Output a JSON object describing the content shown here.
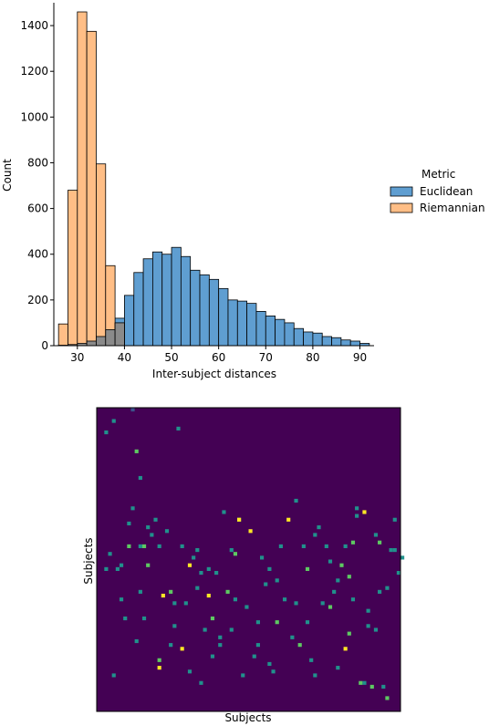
{
  "chart_data": [
    {
      "type": "histogram",
      "xlabel": "Inter-subject distances",
      "ylabel": "Count",
      "xlim": [
        25,
        93
      ],
      "ylim": [
        0,
        1500
      ],
      "xticks": [
        30,
        40,
        50,
        60,
        70,
        80,
        90
      ],
      "yticks": [
        0,
        200,
        400,
        600,
        800,
        1000,
        1200,
        1400
      ],
      "bin_width": 2,
      "legend": {
        "title": "Metric",
        "placement": "right"
      },
      "series": [
        {
          "name": "Euclidean",
          "color": "#5f9ed1",
          "bin_starts": [
            26,
            28,
            30,
            32,
            34,
            36,
            38,
            40,
            42,
            44,
            46,
            48,
            50,
            52,
            54,
            56,
            58,
            60,
            62,
            64,
            66,
            68,
            70,
            72,
            74,
            76,
            78,
            80,
            82,
            84,
            86,
            88,
            90
          ],
          "values": [
            2,
            5,
            10,
            20,
            40,
            70,
            120,
            220,
            320,
            380,
            410,
            400,
            430,
            390,
            330,
            310,
            290,
            250,
            200,
            195,
            185,
            150,
            130,
            115,
            100,
            75,
            60,
            55,
            40,
            35,
            25,
            20,
            10
          ]
        },
        {
          "name": "Riemannian",
          "color": "#ffbe86",
          "bin_starts": [
            26,
            28,
            30,
            32,
            34,
            36,
            38
          ],
          "values": [
            95,
            680,
            1460,
            1375,
            795,
            350,
            100
          ]
        }
      ]
    },
    {
      "type": "heatmap",
      "xlabel": "Subjects",
      "ylabel": "Subjects",
      "colormap": [
        "#440154",
        "#3b528b",
        "#21918c",
        "#5ec962",
        "#fde725"
      ],
      "grid_size": 80,
      "cells": [
        [
          4,
          12,
          2
        ],
        [
          9,
          2,
          1
        ],
        [
          2,
          25,
          2
        ],
        [
          9,
          110,
          2
        ],
        [
          10,
          45,
          3
        ],
        [
          11,
          75,
          2
        ],
        [
          8,
          148,
          3
        ],
        [
          11,
          150,
          2
        ],
        [
          12,
          148,
          3
        ],
        [
          21,
          22,
          2
        ],
        [
          13,
          172,
          3
        ],
        [
          16,
          150,
          2
        ],
        [
          19,
          201,
          3
        ],
        [
          24,
          172,
          4
        ],
        [
          25,
          162,
          2
        ],
        [
          26,
          152,
          2
        ],
        [
          23,
          212,
          2
        ],
        [
          20,
          236,
          2
        ],
        [
          16,
          275,
          3
        ],
        [
          29,
          205,
          4
        ],
        [
          32,
          248,
          2
        ],
        [
          34,
          200,
          3
        ],
        [
          30,
          230,
          3
        ],
        [
          27,
          300,
          2
        ],
        [
          32,
          260,
          2
        ],
        [
          37,
          120,
          3
        ],
        [
          42,
          260,
          2
        ],
        [
          53,
          260,
          3
        ],
        [
          35,
          152,
          2
        ],
        [
          47,
          232,
          3
        ],
        [
          45,
          280,
          2
        ],
        [
          50,
          120,
          4
        ],
        [
          52,
          98,
          2
        ],
        [
          57,
          292,
          2
        ],
        [
          55,
          175,
          3
        ],
        [
          63,
          188,
          2
        ],
        [
          61,
          215,
          3
        ],
        [
          66,
          245,
          3
        ],
        [
          69,
          300,
          3
        ],
        [
          72,
          304,
          3
        ],
        [
          75,
          302,
          2
        ],
        [
          71,
          220,
          2
        ],
        [
          73,
          138,
          2
        ],
        [
          70,
          112,
          4
        ],
        [
          68,
          118,
          2
        ],
        [
          76,
          318,
          3
        ],
        [
          78,
          152,
          2
        ],
        [
          74,
          200,
          2
        ],
        [
          22,
          262,
          4
        ],
        [
          16,
          285,
          4
        ],
        [
          40,
          132,
          4
        ],
        [
          65,
          262,
          4
        ],
        [
          17,
          205,
          4
        ],
        [
          36,
          160,
          3
        ],
        [
          48,
          150,
          2
        ],
        [
          38,
          290,
          2
        ],
        [
          6,
          210,
          2
        ],
        [
          4,
          290,
          2
        ],
        [
          7,
          228,
          2
        ],
        [
          27,
          180,
          2
        ],
        [
          44,
          190,
          2
        ],
        [
          58,
          128,
          2
        ],
        [
          60,
          150,
          2
        ],
        [
          64,
          172,
          3
        ],
        [
          67,
          145,
          3
        ],
        [
          3,
          158,
          2
        ],
        [
          5,
          175,
          2
        ],
        [
          15,
          122,
          2
        ],
        [
          18,
          132,
          2
        ],
        [
          28,
          240,
          2
        ],
        [
          30,
          270,
          2
        ],
        [
          39,
          216,
          2
        ],
        [
          42,
          232,
          2
        ],
        [
          46,
          286,
          2
        ],
        [
          51,
          248,
          2
        ],
        [
          55,
          232,
          2
        ],
        [
          62,
          198,
          2
        ],
        [
          66,
          182,
          3
        ],
        [
          68,
          108,
          2
        ],
        [
          77,
          156,
          2
        ],
        [
          79,
          178,
          2
        ],
        [
          2,
          175,
          2
        ],
        [
          14,
          138,
          2
        ],
        [
          24,
          288,
          2
        ],
        [
          33,
          112,
          2
        ],
        [
          35,
          240,
          2
        ],
        [
          37,
          120,
          4
        ],
        [
          41,
          270,
          2
        ],
        [
          49,
          210,
          2
        ],
        [
          56,
          274,
          2
        ],
        [
          59,
          212,
          2
        ],
        [
          63,
          282,
          2
        ],
        [
          70,
          298,
          2
        ],
        [
          73,
          240,
          2
        ],
        [
          76,
          196,
          2
        ],
        [
          78,
          120,
          2
        ],
        [
          80,
          162,
          2
        ],
        [
          10,
          252,
          2
        ],
        [
          12,
          228,
          2
        ],
        [
          20,
          212,
          2
        ],
        [
          26,
          196,
          2
        ],
        [
          31,
          178,
          2
        ],
        [
          43,
          162,
          2
        ],
        [
          54,
          148,
          2
        ],
        [
          57,
          136,
          2
        ],
        [
          22,
          148,
          2
        ],
        [
          45,
          174,
          2
        ],
        [
          65,
          150,
          2
        ],
        [
          71,
          238,
          2
        ],
        [
          74,
          144,
          3
        ],
        [
          8,
          125,
          2
        ],
        [
          19,
          260,
          2
        ],
        [
          29,
          174,
          2
        ],
        [
          6,
          170,
          2
        ],
        [
          11,
          200,
          2
        ],
        [
          13,
          130,
          2
        ],
        [
          36,
          210,
          2
        ],
        [
          47,
          186,
          2
        ],
        [
          52,
          212,
          2
        ],
        [
          61,
          168,
          2
        ],
        [
          67,
          210,
          2
        ]
      ]
    }
  ]
}
